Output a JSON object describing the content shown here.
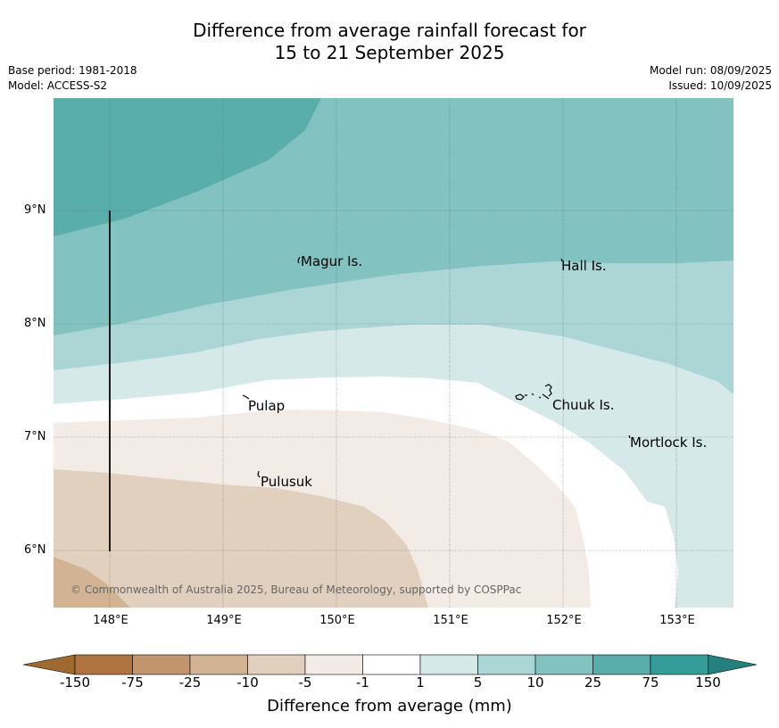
{
  "header": {
    "title_line1": "Difference from average rainfall forecast for",
    "title_line2": "15 to 21 September 2025",
    "base_period": "Base period: 1981-2018",
    "model": "Model: ACCESS-S2",
    "model_run": "Model run: 08/09/2025",
    "issued": "Issued: 10/09/2025"
  },
  "map": {
    "lat_labels": [
      "9°N",
      "8°N",
      "7°N",
      "6°N"
    ],
    "lon_labels": [
      "148°E",
      "149°E",
      "150°E",
      "151°E",
      "152°E",
      "153°E"
    ],
    "places": [
      "Magur Is.",
      "Hall Is.",
      "Pulap",
      "Chuuk Is.",
      "Mortlock Is.",
      "Pulusuk"
    ],
    "copyright": "© Commonwealth of Australia 2025, Bureau of Meteorology, supported by COSPPac"
  },
  "colorbar": {
    "ticks": [
      "-150",
      "-75",
      "-25",
      "-10",
      "-5",
      "-1",
      "1",
      "5",
      "10",
      "25",
      "75",
      "150"
    ],
    "label": "Difference from average (mm)",
    "colors": [
      "#a0692f",
      "#b07440",
      "#c3956e",
      "#d2b394",
      "#e2d0be",
      "#f3ece6",
      "#ffffff",
      "#d5e9e8",
      "#acd6d5",
      "#82c2c0",
      "#59adab",
      "#359c99",
      "#23807c"
    ]
  }
}
